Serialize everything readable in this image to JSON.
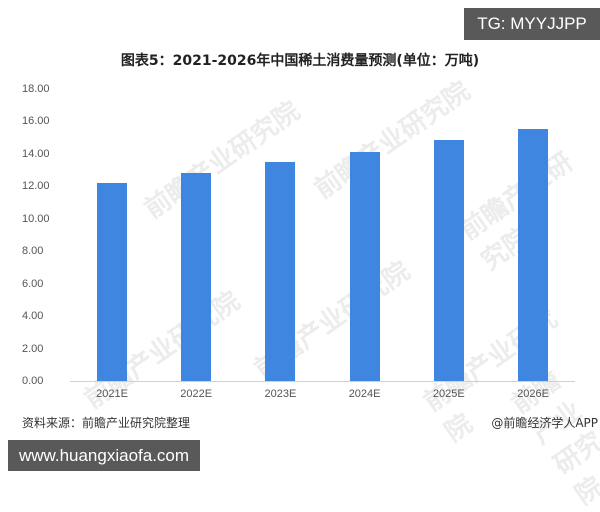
{
  "badges": {
    "tg": "TG: MYYJJPP",
    "url": "www.huangxiaofa.com"
  },
  "footer": {
    "source": "资料来源：前瞻产业研究院整理",
    "credit": "@前瞻经济学人APP"
  },
  "watermark": "前瞻产业研究院",
  "colors": {
    "bar": "#3f86e0",
    "badge": "#595959"
  },
  "chart_data": {
    "type": "bar",
    "title": "图表5：2021-2026年中国稀土消费量预测(单位：万吨)",
    "xlabel": "",
    "ylabel": "",
    "categories": [
      "2021E",
      "2022E",
      "2023E",
      "2024E",
      "2025E",
      "2026E"
    ],
    "values": [
      12.18,
      12.8,
      13.48,
      14.09,
      14.83,
      15.5
    ],
    "ylim": [
      0,
      18
    ],
    "yticks": [
      "0.00",
      "2.00",
      "4.00",
      "6.00",
      "8.00",
      "10.00",
      "12.00",
      "14.00",
      "16.00",
      "18.00"
    ],
    "grid": false,
    "legend": null
  }
}
